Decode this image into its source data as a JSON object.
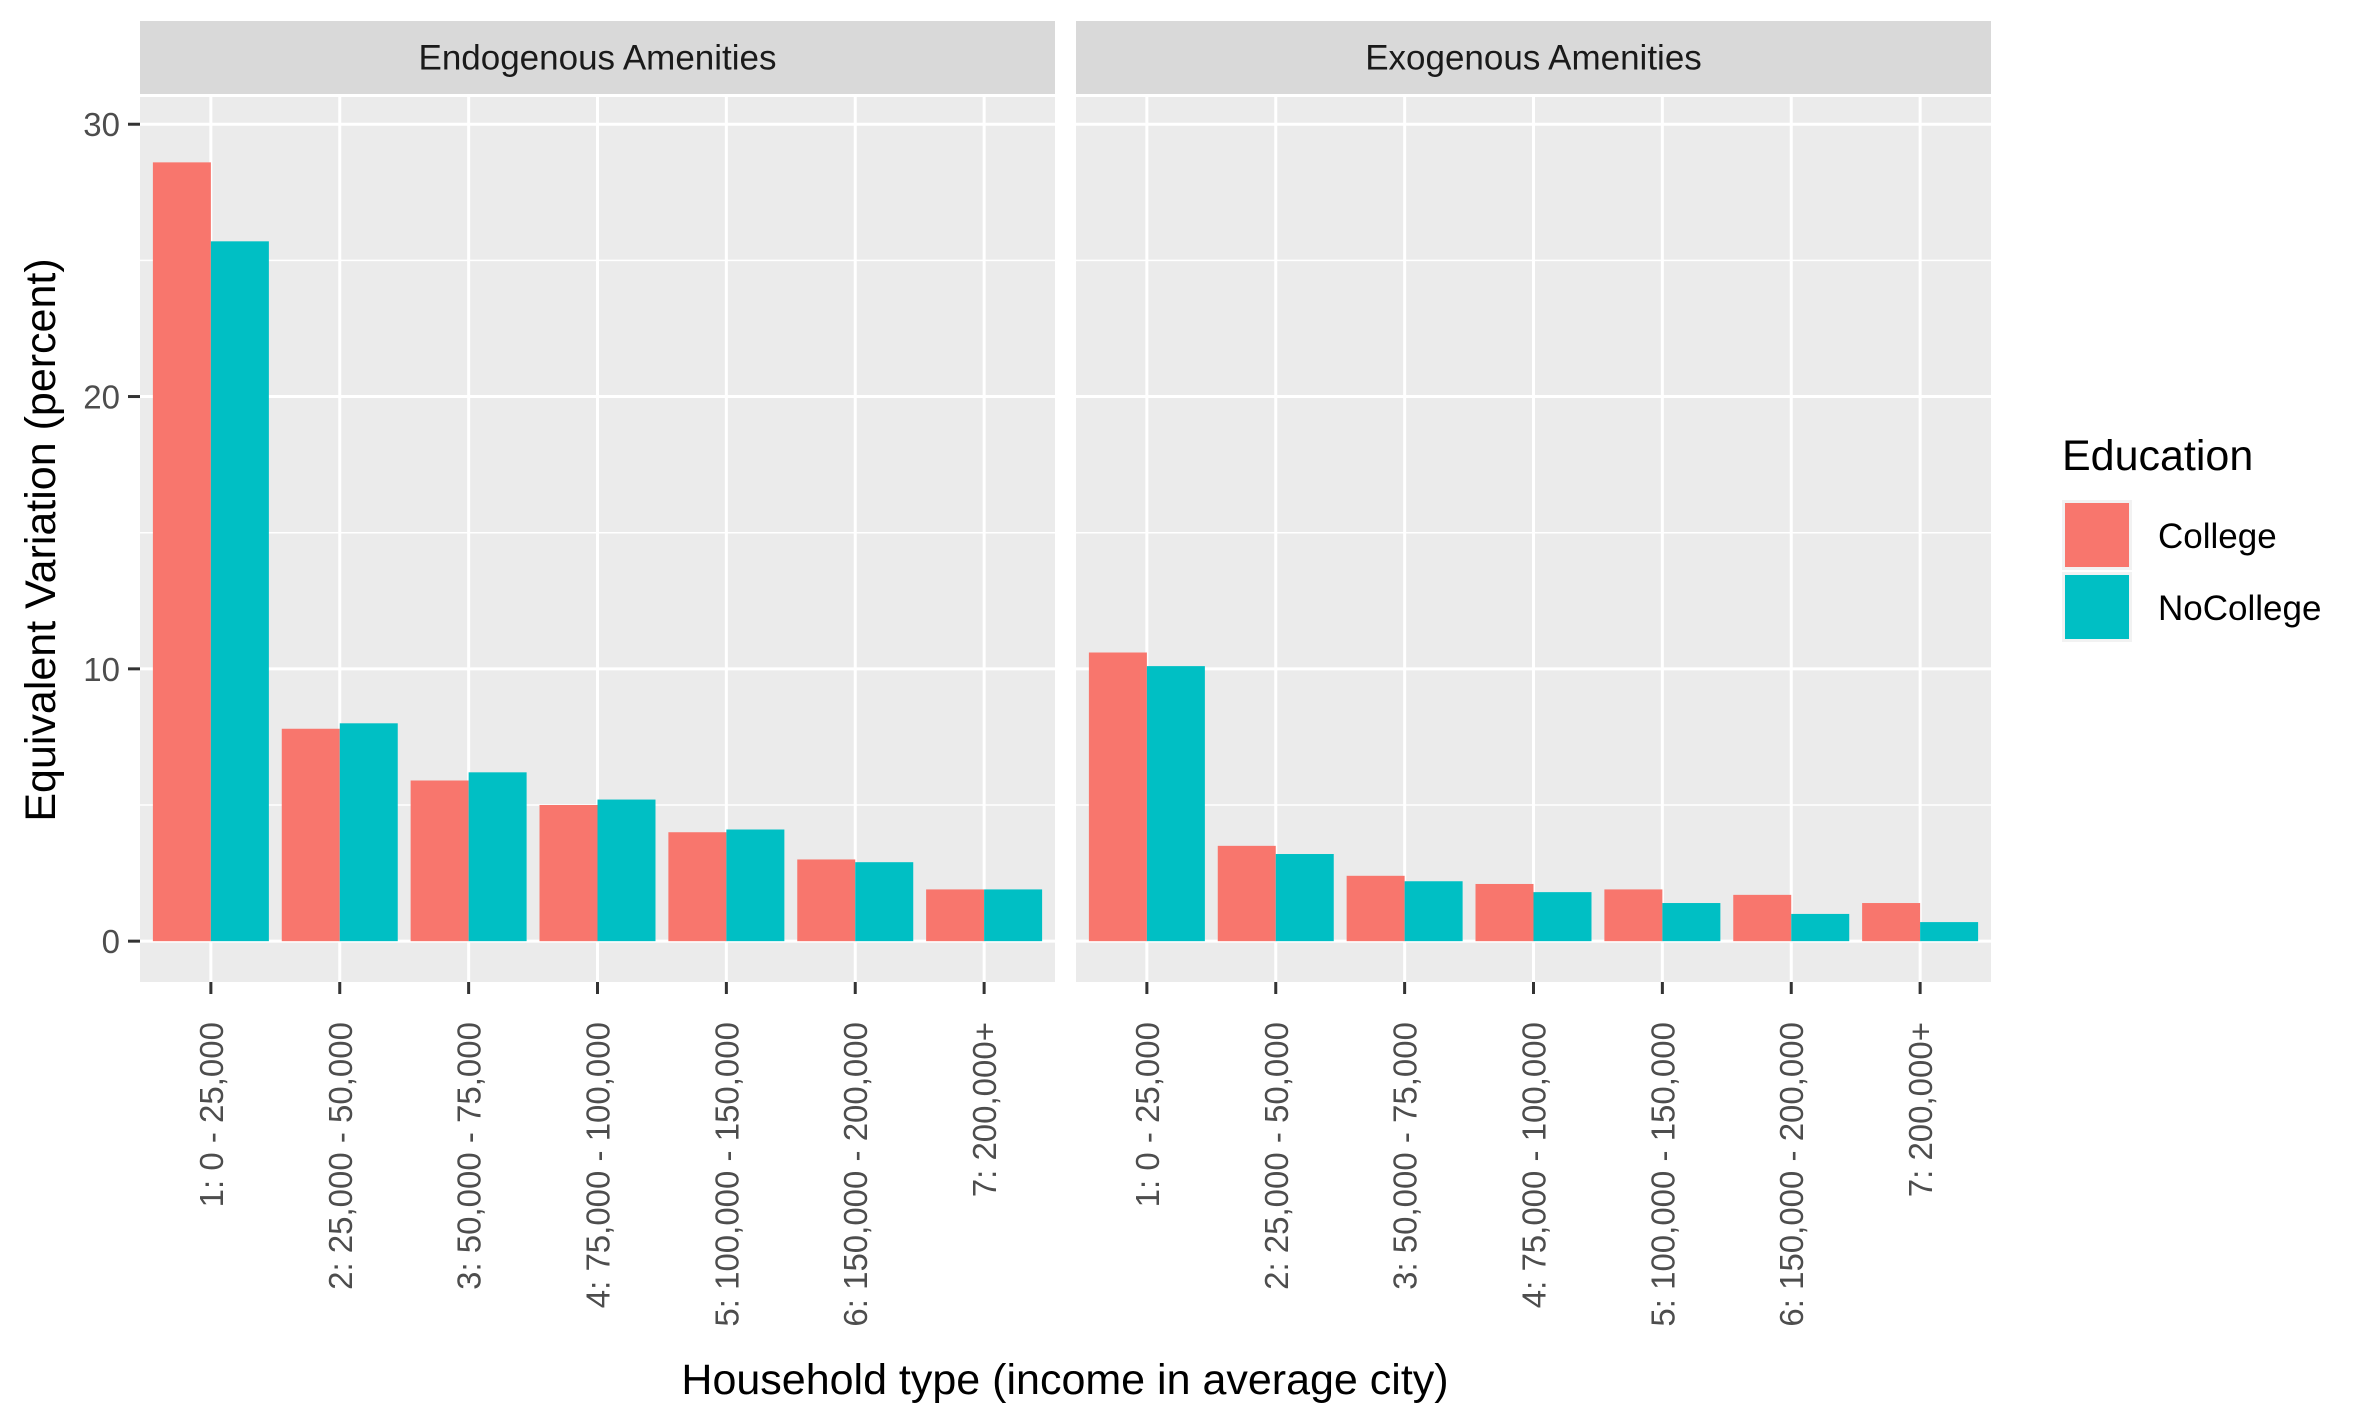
{
  "chart_data": {
    "type": "bar",
    "ylabel": "Equivalent Variation (percent)",
    "xlabel": "Household type (income in average city)",
    "ylim": [
      -1.5,
      31
    ],
    "yticks": [
      0,
      10,
      20,
      30
    ],
    "yticks_labels": [
      "0",
      "10",
      "20",
      "30"
    ],
    "categories": [
      "1: 0 - 25,000",
      "2: 25,000 - 50,000",
      "3: 50,000 - 75,000",
      "4: 75,000 - 100,000",
      "5: 100,000 - 150,000",
      "6: 150,000 - 200,000",
      "7: 200,000+"
    ],
    "legend": {
      "title": "Education",
      "position": "right",
      "entries": [
        {
          "name": "College",
          "color": "#F8766D"
        },
        {
          "name": "NoCollege",
          "color": "#00BFC4"
        }
      ]
    },
    "facets": [
      {
        "title": "Endogenous Amenities",
        "series": [
          {
            "name": "College",
            "color": "#F8766D",
            "values": [
              28.6,
              7.8,
              5.9,
              5.0,
              4.0,
              3.0,
              1.9
            ]
          },
          {
            "name": "NoCollege",
            "color": "#00BFC4",
            "values": [
              25.7,
              8.0,
              6.2,
              5.2,
              4.1,
              2.9,
              1.9
            ]
          }
        ]
      },
      {
        "title": "Exogenous Amenities",
        "series": [
          {
            "name": "College",
            "color": "#F8766D",
            "values": [
              10.6,
              3.5,
              2.4,
              2.1,
              1.9,
              1.7,
              1.4
            ]
          },
          {
            "name": "NoCollege",
            "color": "#00BFC4",
            "values": [
              10.1,
              3.2,
              2.2,
              1.8,
              1.4,
              1.0,
              0.7
            ]
          }
        ]
      }
    ],
    "grid": true
  }
}
